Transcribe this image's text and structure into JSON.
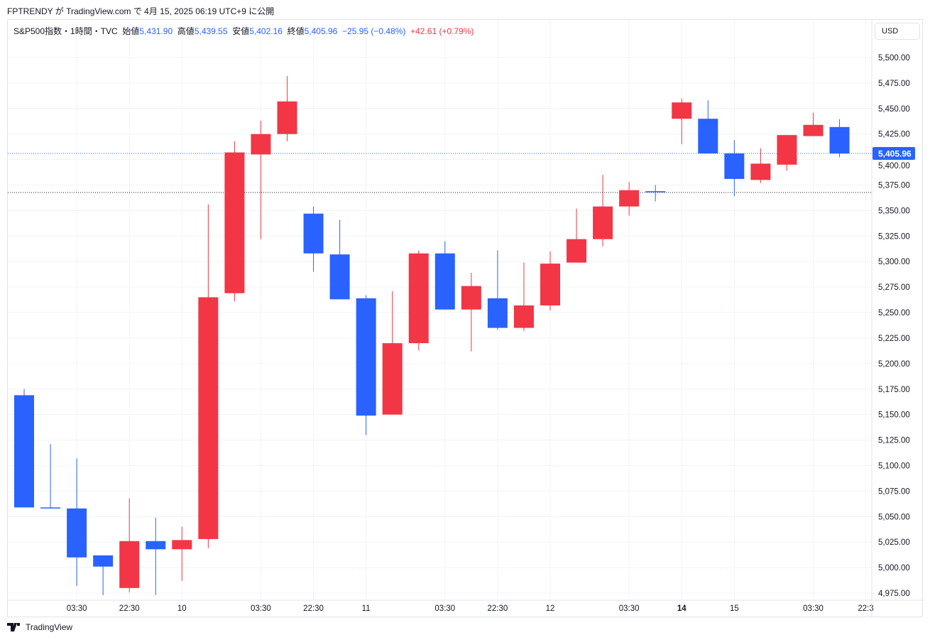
{
  "published": "FPTRENDY が TradingView.com で 4月 15, 2025 06:19 UTC+9 に公開",
  "legend": {
    "symbol": "S&P500指数・1時間・TVC",
    "open_label": "始値",
    "open": "5,431.90",
    "high_label": "高値",
    "high": "5,439.55",
    "low_label": "安値",
    "low": "5,402.16",
    "close_label": "終値",
    "close": "5,405.96",
    "change": "−25.95 (−0.48%)",
    "change2": "+42.61 (+0.79%)"
  },
  "currency": "USD",
  "brand": "TradingView",
  "colors": {
    "up": "#f23645",
    "down": "#2962ff",
    "price_label": "#2962ff"
  },
  "chart_data": {
    "type": "candlestick",
    "ylim": [
      4962,
      5522
    ],
    "y_ticks": [
      "5,500.00",
      "5,475.00",
      "5,450.00",
      "5,425.00",
      "5,400.00",
      "5,375.00",
      "5,350.00",
      "5,325.00",
      "5,300.00",
      "5,275.00",
      "5,250.00",
      "5,225.00",
      "5,200.00",
      "5,175.00",
      "5,150.00",
      "5,125.00",
      "5,100.00",
      "5,075.00",
      "5,050.00",
      "5,025.00",
      "5,000.00",
      "4,975.00"
    ],
    "y_tick_values": [
      5500,
      5475,
      5450,
      5425,
      5400,
      5375,
      5350,
      5325,
      5300,
      5275,
      5250,
      5225,
      5200,
      5175,
      5150,
      5125,
      5100,
      5075,
      5050,
      5025,
      5000,
      4975
    ],
    "x_ticks": [
      {
        "label": "03:30",
        "index": 2
      },
      {
        "label": "22:30",
        "index": 4
      },
      {
        "label": "10",
        "index": 6
      },
      {
        "label": "03:30",
        "index": 9
      },
      {
        "label": "22:30",
        "index": 11
      },
      {
        "label": "11",
        "index": 13
      },
      {
        "label": "03:30",
        "index": 16
      },
      {
        "label": "22:30",
        "index": 18
      },
      {
        "label": "12",
        "index": 20
      },
      {
        "label": "03:30",
        "index": 23
      },
      {
        "label": "14",
        "index": 25,
        "bold": true
      },
      {
        "label": "15",
        "index": 27
      },
      {
        "label": "03:30",
        "index": 30
      },
      {
        "label": "22:3",
        "index": 32
      }
    ],
    "candles": [
      [
        5169,
        5175,
        5059,
        5059
      ],
      [
        5059,
        5121,
        5058,
        5058
      ],
      [
        5058,
        5107,
        4982,
        5010
      ],
      [
        5012,
        5012,
        4973,
        5001
      ],
      [
        4980,
        5068,
        4976,
        5026
      ],
      [
        5026,
        5049,
        4973,
        5018
      ],
      [
        5018,
        5040,
        4987,
        5027
      ],
      [
        5028,
        5356,
        5019,
        5265
      ],
      [
        5269,
        5418,
        5261,
        5407
      ],
      [
        5405,
        5438,
        5322,
        5425
      ],
      [
        5425,
        5482,
        5418,
        5457
      ],
      [
        5347,
        5354,
        5290,
        5308
      ],
      [
        5307,
        5341,
        5263,
        5263
      ],
      [
        5264,
        5267,
        5130,
        5149
      ],
      [
        5150,
        5271,
        5150,
        5220
      ],
      [
        5220,
        5311,
        5213,
        5308
      ],
      [
        5308,
        5320,
        5253,
        5253
      ],
      [
        5253,
        5289,
        5212,
        5276
      ],
      [
        5264,
        5311,
        5233,
        5235
      ],
      [
        5235,
        5299,
        5232,
        5257
      ],
      [
        5257,
        5310,
        5252,
        5298
      ],
      [
        5299,
        5352,
        5299,
        5322
      ],
      [
        5322,
        5385,
        5315,
        5354
      ],
      [
        5354,
        5378,
        5345,
        5370
      ],
      [
        5369,
        5375,
        5359,
        5368
      ],
      [
        5440,
        5460,
        5415,
        5456
      ],
      [
        5440,
        5458,
        5406,
        5406
      ],
      [
        5406,
        5419,
        5364,
        5381
      ],
      [
        5380,
        5411,
        5377,
        5396
      ],
      [
        5395,
        5424,
        5389,
        5424
      ],
      [
        5423,
        5446,
        5423,
        5434
      ],
      [
        5431.9,
        5439.55,
        5402.16,
        5405.96
      ]
    ],
    "candle_format": [
      "open",
      "high",
      "low",
      "close"
    ],
    "last_price": 5405.96,
    "last_price_label": "5,405.96",
    "reference_line": 5367.7,
    "grid": true
  }
}
